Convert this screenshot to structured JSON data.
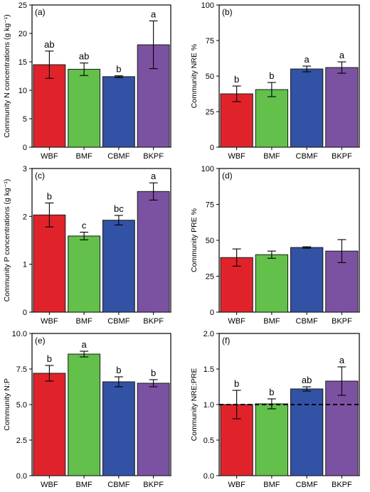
{
  "colors": {
    "WBF": "#e0232b",
    "BMF": "#62c04b",
    "CBMF": "#3252a5",
    "BKPF": "#7b52a1"
  },
  "chart_data": [
    {
      "type": "bar",
      "panel": "(a)",
      "ylabel": "Community N concentrations (g kg⁻¹)",
      "categories": [
        "WBF",
        "BMF",
        "CBMF",
        "BKPF"
      ],
      "values": [
        14.5,
        13.7,
        12.4,
        18.0
      ],
      "errors": [
        2.4,
        1.1,
        0.15,
        4.2
      ],
      "letters": [
        "ab",
        "ab",
        "b",
        "a"
      ],
      "ylim": [
        0,
        25
      ],
      "yticks": [
        0,
        5,
        10,
        15,
        20,
        25
      ]
    },
    {
      "type": "bar",
      "panel": "(b)",
      "ylabel": "Community NRE %",
      "categories": [
        "WBF",
        "BMF",
        "CBMF",
        "BKPF"
      ],
      "values": [
        37.5,
        40.5,
        55.0,
        56.0
      ],
      "errors": [
        5.5,
        5.0,
        2.0,
        4.0
      ],
      "letters": [
        "b",
        "b",
        "a",
        "a"
      ],
      "ylim": [
        0,
        100
      ],
      "yticks": [
        0,
        25,
        50,
        75,
        100
      ]
    },
    {
      "type": "bar",
      "panel": "(c)",
      "ylabel": "Community P concentrations (g kg⁻¹)",
      "categories": [
        "WBF",
        "BMF",
        "CBMF",
        "BKPF"
      ],
      "values": [
        2.03,
        1.59,
        1.92,
        2.52
      ],
      "errors": [
        0.25,
        0.08,
        0.1,
        0.18
      ],
      "letters": [
        "b",
        "c",
        "bc",
        "a"
      ],
      "ylim": [
        0,
        3
      ],
      "yticks": [
        0,
        1,
        2,
        3
      ]
    },
    {
      "type": "bar",
      "panel": "(d)",
      "ylabel": "Community PRE %",
      "categories": [
        "WBF",
        "BMF",
        "CBMF",
        "BKPF"
      ],
      "values": [
        38.0,
        40.0,
        45.0,
        42.5
      ],
      "errors": [
        6.0,
        2.5,
        0.5,
        8.0
      ],
      "letters": [
        "",
        "",
        "",
        ""
      ],
      "ylim": [
        0,
        100
      ],
      "yticks": [
        0,
        25,
        50,
        75,
        100
      ]
    },
    {
      "type": "bar",
      "panel": "(e)",
      "ylabel": "Community N:P",
      "categories": [
        "WBF",
        "BMF",
        "CBMF",
        "BKPF"
      ],
      "values": [
        7.2,
        8.55,
        6.6,
        6.5
      ],
      "errors": [
        0.55,
        0.2,
        0.35,
        0.25
      ],
      "letters": [
        "b",
        "a",
        "b",
        "b"
      ],
      "ylim": [
        0,
        10
      ],
      "yticks": [
        0.0,
        2.5,
        5.0,
        7.5,
        10.0
      ]
    },
    {
      "type": "bar",
      "panel": "(f)",
      "ylabel": "Community NRE:PRE",
      "categories": [
        "WBF",
        "BMF",
        "CBMF",
        "BKPF"
      ],
      "values": [
        1.0,
        1.01,
        1.22,
        1.33
      ],
      "errors": [
        0.2,
        0.07,
        0.03,
        0.2
      ],
      "letters": [
        "b",
        "b",
        "ab",
        "a"
      ],
      "ylim": [
        0,
        2
      ],
      "yticks": [
        0.0,
        0.5,
        1.0,
        1.5,
        2.0
      ],
      "reference_line": 1.0
    }
  ]
}
